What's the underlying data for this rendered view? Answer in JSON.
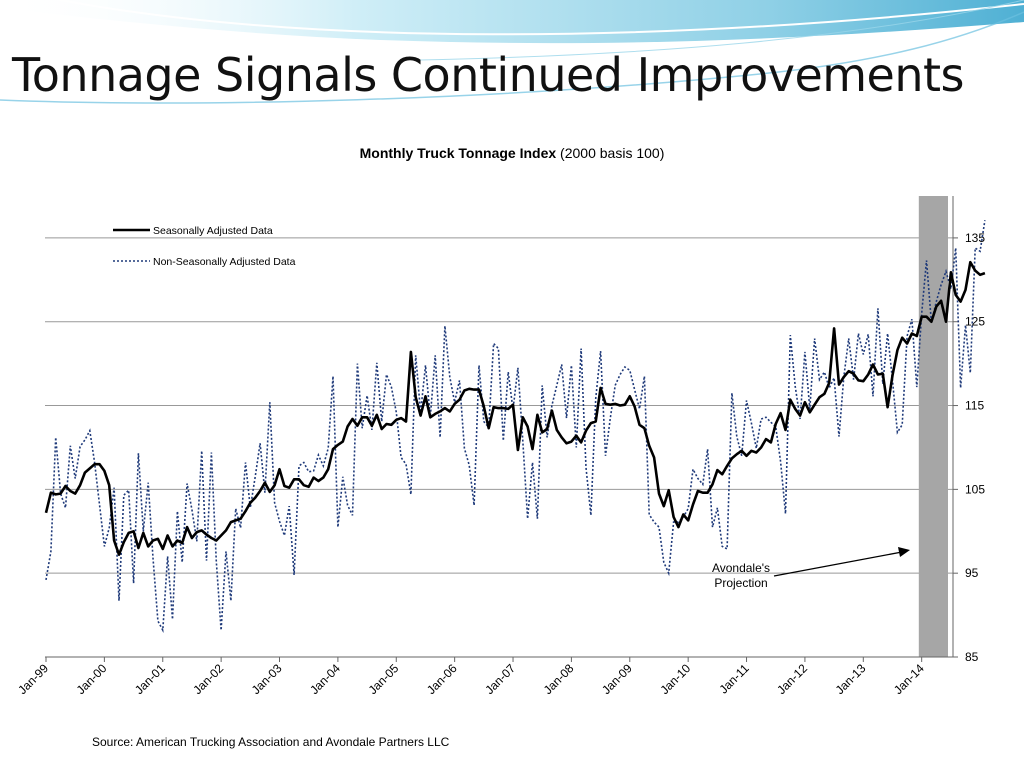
{
  "slide": {
    "title": "Tonnage Signals Continued Improvements",
    "source": "Source: American Trucking Association and Avondale Partners LLC"
  },
  "colors": {
    "sa_line": "#000000",
    "nsa_line": "#1f3a7a",
    "projection_band": "#a6a6a6",
    "gridline": "#999999",
    "wave_light": "#bfe6f2",
    "wave_dark": "#5ab4d6"
  },
  "chart_data": {
    "type": "line",
    "title_bold": "Monthly Truck Tonnage Index",
    "title_rest": " (2000 basis 100)",
    "yaxis_side": "right",
    "ylim": [
      85,
      140
    ],
    "yticks": [
      85,
      95,
      105,
      115,
      125,
      135
    ],
    "grid": true,
    "x_start": "Jan-99",
    "x_end": "Jun-14",
    "xticks": [
      "Jan-99",
      "Jan-00",
      "Jan-01",
      "Jan-02",
      "Jan-03",
      "Jan-04",
      "Jan-05",
      "Jan-06",
      "Jan-07",
      "Jan-08",
      "Jan-09",
      "Jan-10",
      "Jan-11",
      "Jan-12",
      "Jan-13",
      "Jan-14"
    ],
    "legend_position": "top-left",
    "projection_band": {
      "from": "Dec-13",
      "to": "Jun-14"
    },
    "annotation": {
      "line1": "Avondale's",
      "line2": "Projection"
    },
    "series": [
      {
        "name": "Seasonally Adjusted Data",
        "style": "solid",
        "values": [
          102.2,
          104.6,
          104.4,
          104.5,
          105.4,
          104.8,
          104.5,
          105.5,
          107.0,
          107.5,
          108.0,
          108.0,
          107.2,
          105.5,
          98.9,
          97.2,
          98.7,
          99.8,
          100.0,
          98.0,
          99.8,
          98.2,
          98.9,
          99.1,
          97.9,
          99.5,
          98.2,
          98.9,
          98.6,
          100.5,
          99.2,
          99.9,
          100.1,
          99.6,
          99.2,
          98.9,
          99.5,
          100.1,
          101.1,
          101.3,
          101.5,
          102.4,
          103.4,
          104.0,
          104.8,
          105.8,
          104.7,
          105.5,
          107.4,
          105.4,
          105.2,
          106.2,
          106.2,
          105.5,
          105.3,
          106.4,
          106.0,
          106.4,
          107.4,
          109.8,
          110.3,
          110.7,
          112.5,
          113.4,
          112.6,
          113.6,
          113.6,
          112.6,
          113.9,
          112.2,
          112.8,
          112.7,
          113.3,
          113.5,
          113.1,
          121.4,
          116.0,
          113.8,
          116.1,
          113.6,
          114.0,
          114.3,
          114.7,
          114.3,
          115.2,
          115.7,
          116.8,
          117.0,
          116.9,
          116.9,
          114.9,
          112.3,
          114.8,
          114.7,
          114.7,
          114.6,
          115.1,
          109.7,
          113.6,
          112.5,
          109.8,
          113.9,
          111.8,
          112.2,
          114.4,
          112.1,
          111.2,
          110.5,
          110.7,
          111.4,
          110.6,
          112.0,
          112.9,
          113.1,
          117.1,
          115.2,
          115.1,
          115.2,
          115.0,
          115.1,
          116.1,
          114.9,
          112.7,
          112.3,
          110.2,
          108.8,
          104.5,
          103.0,
          104.9,
          101.7,
          100.5,
          102.0,
          101.3,
          103.2,
          104.8,
          104.6,
          104.6,
          105.6,
          107.3,
          106.8,
          107.8,
          108.7,
          109.2,
          109.6,
          109.0,
          109.6,
          109.4,
          110.0,
          111.0,
          110.6,
          112.8,
          114.1,
          112.1,
          115.7,
          114.6,
          113.8,
          115.4,
          114.2,
          115.1,
          116.0,
          116.4,
          117.7,
          124.2,
          117.5,
          118.4,
          119.1,
          118.8,
          118.0,
          117.9,
          118.7,
          119.9,
          118.7,
          118.8,
          114.8,
          118.6,
          121.6,
          123.1,
          122.4,
          123.6,
          123.3,
          125.6,
          125.6,
          125.0,
          126.8,
          127.5,
          125.0,
          130.9,
          128.2,
          127.4,
          128.8,
          132.1,
          131.1,
          130.6,
          130.8
        ]
      },
      {
        "name": "Non-Seasonally Adjusted Data",
        "style": "dotted",
        "values": [
          94.2,
          97.6,
          111.2,
          104.5,
          102.8,
          110.2,
          106.3,
          110.1,
          110.9,
          112.0,
          108.2,
          103.2,
          98.2,
          100.4,
          105.2,
          91.7,
          104.3,
          104.9,
          93.8,
          109.3,
          100.0,
          105.8,
          96.8,
          89.3,
          88.2,
          97.0,
          89.5,
          102.4,
          96.3,
          105.7,
          102.6,
          98.8,
          109.6,
          96.5,
          109.4,
          96.4,
          88.2,
          97.6,
          91.7,
          102.7,
          100.4,
          108.2,
          102.8,
          106.5,
          110.5,
          104.6,
          115.4,
          103.4,
          101.2,
          99.5,
          103.0,
          94.8,
          107.8,
          108.2,
          107.1,
          107.2,
          109.1,
          107.8,
          109.9,
          118.5,
          100.5,
          106.5,
          103.1,
          101.9,
          120.0,
          112.3,
          116.2,
          112.1,
          120.1,
          113.1,
          118.7,
          117.2,
          114.2,
          108.8,
          108.0,
          104.4,
          121.0,
          114.2,
          119.8,
          113.6,
          121.0,
          111.2,
          124.5,
          118.4,
          115.4,
          118.0,
          109.9,
          107.9,
          103.1,
          119.8,
          113.1,
          112.4,
          122.4,
          121.8,
          110.8,
          119.0,
          114.5,
          119.5,
          110.8,
          101.5,
          108.2,
          101.5,
          117.4,
          111.2,
          115.0,
          117.4,
          119.9,
          113.5,
          119.8,
          110.0,
          121.8,
          107.6,
          101.9,
          115.8,
          121.5,
          109.0,
          113.5,
          117.4,
          118.7,
          119.6,
          119.2,
          116.9,
          114.6,
          118.5,
          102.0,
          101.1,
          100.5,
          96.3,
          95.0,
          101.1,
          101.1,
          101.7,
          102.7,
          107.4,
          106.3,
          105.6,
          109.8,
          100.5,
          102.8,
          98.2,
          97.9,
          116.5,
          111.3,
          109.0,
          115.6,
          112.9,
          109.9,
          113.4,
          113.6,
          113.0,
          112.5,
          108.3,
          102.1,
          123.4,
          117.3,
          113.4,
          121.4,
          114.6,
          123.0,
          118.1,
          119.0,
          117.1,
          118.3,
          111.3,
          118.4,
          123.0,
          118.1,
          123.6,
          121.1,
          123.5,
          116.1,
          126.6,
          117.6,
          123.6,
          118.0,
          111.8,
          112.7,
          123.3,
          125.3,
          117.2,
          126.0,
          132.3,
          124.9,
          127.4,
          129.4,
          131.0,
          128.9,
          133.8,
          117.1,
          124.6,
          118.9,
          133.8,
          133.4,
          137.1
        ]
      }
    ]
  }
}
